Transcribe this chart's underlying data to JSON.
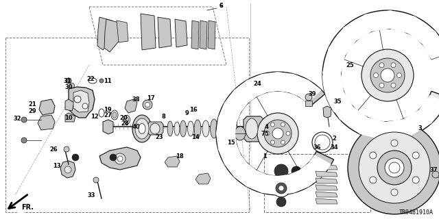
{
  "bg_color": "#ffffff",
  "diagram_code": "TR04B1910A",
  "fig_width": 6.4,
  "fig_height": 3.2,
  "dpi": 100,
  "font_size_parts": 5.5,
  "font_size_code": 6,
  "gray_light": "#e8e8e8",
  "gray_mid": "#c8c8c8",
  "gray_dark": "#888888",
  "black": "#111111",
  "white": "#ffffff"
}
